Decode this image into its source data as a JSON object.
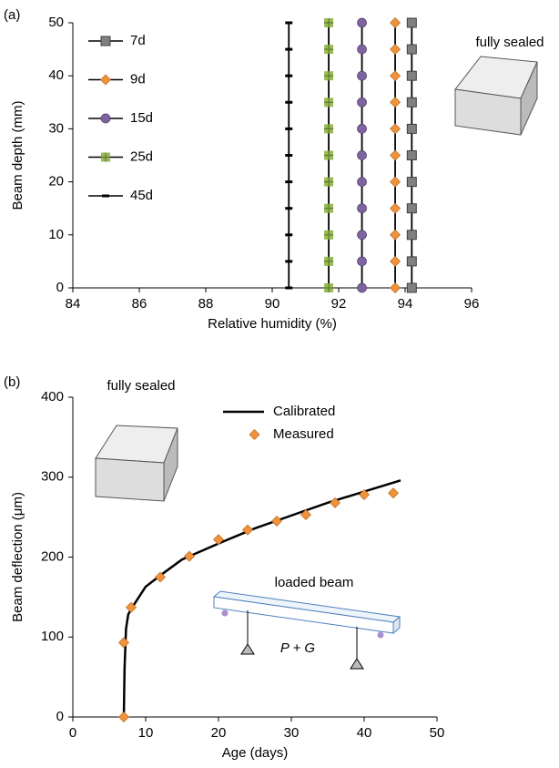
{
  "chart_data": [
    {
      "type": "line",
      "annotations": [
        "(a)",
        "fully sealed"
      ],
      "xlabel": "Relative humidity (%)",
      "ylabel": "Beam depth  (mm)",
      "xlim": [
        84,
        96
      ],
      "xticks": [
        84,
        86,
        88,
        90,
        92,
        94,
        96
      ],
      "ylim": [
        0,
        50
      ],
      "yticks": [
        0,
        10,
        20,
        30,
        40,
        50
      ],
      "y": [
        0,
        5,
        10,
        15,
        20,
        25,
        30,
        35,
        40,
        45,
        50
      ],
      "series": [
        {
          "name": "7d",
          "color": "#808080",
          "marker": "square",
          "x": [
            94.2,
            94.2,
            94.2,
            94.2,
            94.2,
            94.2,
            94.2,
            94.2,
            94.2,
            94.2,
            94.2
          ]
        },
        {
          "name": "9d",
          "color": "#f0923a",
          "marker": "diamond",
          "x": [
            93.7,
            93.7,
            93.7,
            93.7,
            93.7,
            93.7,
            93.7,
            93.7,
            93.7,
            93.7,
            93.7
          ]
        },
        {
          "name": "15d",
          "color": "#8064a2",
          "marker": "circle",
          "x": [
            92.7,
            92.7,
            92.7,
            92.7,
            92.7,
            92.7,
            92.7,
            92.7,
            92.7,
            92.7,
            92.7
          ]
        },
        {
          "name": "25d",
          "color": "#9bbb59",
          "marker": "square-plus",
          "x": [
            91.7,
            91.7,
            91.7,
            91.7,
            91.7,
            91.7,
            91.7,
            91.7,
            91.7,
            91.7,
            91.7
          ]
        },
        {
          "name": "45d",
          "color": "#000000",
          "marker": "dash",
          "x": [
            90.5,
            90.5,
            90.5,
            90.5,
            90.5,
            90.5,
            90.5,
            90.5,
            90.5,
            90.5,
            90.5
          ]
        }
      ]
    },
    {
      "type": "line",
      "annotations": [
        "(b)",
        "fully sealed",
        "loaded beam",
        "P + G"
      ],
      "xlabel": "Age  (days)",
      "ylabel": "Beam deflection (μm)",
      "xlim": [
        0,
        50
      ],
      "xticks": [
        0,
        10,
        20,
        30,
        40,
        50
      ],
      "ylim": [
        0,
        400
      ],
      "yticks": [
        0,
        100,
        200,
        300,
        400
      ],
      "series": [
        {
          "name": "Calibrated",
          "color": "#000000",
          "marker": "none",
          "x": [
            7,
            7.1,
            7.3,
            7.6,
            8,
            10,
            12,
            15,
            20,
            25,
            30,
            35,
            40,
            45
          ],
          "values": [
            0,
            60,
            110,
            128,
            135,
            163,
            177,
            197,
            217,
            236,
            252,
            268,
            282,
            296
          ]
        },
        {
          "name": "Measured",
          "color": "#f0923a",
          "marker": "diamond",
          "x": [
            7,
            7,
            8,
            12,
            16,
            20,
            24,
            28,
            32,
            36,
            40,
            44
          ],
          "values": [
            0,
            93,
            137,
            175,
            201,
            222,
            234,
            245,
            253,
            268,
            278,
            280
          ]
        }
      ]
    }
  ]
}
